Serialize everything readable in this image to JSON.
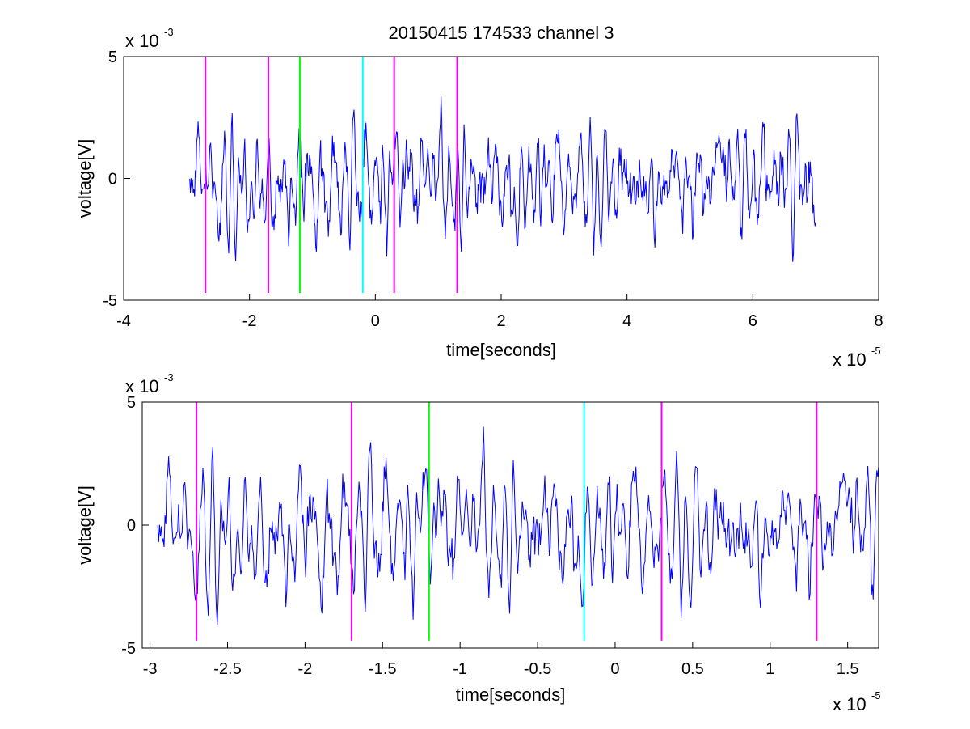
{
  "chart_data": [
    {
      "type": "line",
      "title": "20150415 174533 channel 3",
      "xlabel": "time[seconds]",
      "ylabel": "voltage[V]",
      "x_exponent_label": "x 10",
      "x_exponent_power": "-5",
      "y_exponent_label": "x 10",
      "y_exponent_power": "-3",
      "xlim": [
        -4,
        8
      ],
      "ylim": [
        -5,
        5
      ],
      "xticks": [
        -4,
        -2,
        0,
        2,
        4,
        6,
        8
      ],
      "xtick_labels": [
        "-4",
        "-2",
        "0",
        "2",
        "4",
        "6",
        "8"
      ],
      "yticks": [
        -5,
        0,
        5
      ],
      "ytick_labels": [
        "-5",
        "0",
        "5"
      ],
      "grid": false,
      "signal": {
        "color": "#0000ff",
        "x_start": -2.95,
        "x_end": 7.0,
        "samples": 900,
        "seed": 41,
        "envelope_peak": 3.6,
        "mean": -0.25
      },
      "markers": [
        {
          "x": -2.7,
          "color": "#ff00ff",
          "y_range": [
            -4.7,
            5
          ]
        },
        {
          "x": -1.7,
          "color": "#ff00ff",
          "y_range": [
            -4.7,
            5
          ]
        },
        {
          "x": -1.2,
          "color": "#00ff00",
          "y_range": [
            -4.7,
            5
          ]
        },
        {
          "x": -0.2,
          "color": "#00ffff",
          "y_range": [
            -4.7,
            5
          ]
        },
        {
          "x": 0.3,
          "color": "#ff00ff",
          "y_range": [
            -4.7,
            5
          ]
        },
        {
          "x": 1.3,
          "color": "#ff00ff",
          "y_range": [
            -4.7,
            5
          ]
        }
      ]
    },
    {
      "type": "line",
      "title": "",
      "xlabel": "time[seconds]",
      "ylabel": "voltage[V]",
      "x_exponent_label": "x 10",
      "x_exponent_power": "-5",
      "y_exponent_label": "x 10",
      "y_exponent_power": "-3",
      "xlim": [
        -3.05,
        1.7
      ],
      "ylim": [
        -5,
        5
      ],
      "xticks": [
        -3,
        -2.5,
        -2,
        -1.5,
        -1,
        -0.5,
        0,
        0.5,
        1,
        1.5
      ],
      "xtick_labels": [
        "-3",
        "-2.5",
        "-2",
        "-1.5",
        "-1",
        "-0.5",
        "0",
        "0.5",
        "1",
        "1.5"
      ],
      "yticks": [
        -5,
        0,
        5
      ],
      "ytick_labels": [
        "-5",
        "0",
        "5"
      ],
      "grid": false,
      "signal": {
        "color": "#0000ff",
        "x_start": -2.95,
        "x_end": 1.7,
        "samples": 800,
        "seed": 41,
        "envelope_peak": 4.3,
        "mean": -0.3
      },
      "markers": [
        {
          "x": -2.7,
          "color": "#ff00ff",
          "y_range": [
            -4.7,
            5
          ]
        },
        {
          "x": -1.7,
          "color": "#ff00ff",
          "y_range": [
            -4.7,
            5
          ]
        },
        {
          "x": -1.2,
          "color": "#00ff00",
          "y_range": [
            -4.7,
            5
          ]
        },
        {
          "x": -0.2,
          "color": "#00ffff",
          "y_range": [
            -4.7,
            5
          ]
        },
        {
          "x": 0.3,
          "color": "#ff00ff",
          "y_range": [
            -4.7,
            5
          ]
        },
        {
          "x": 1.3,
          "color": "#ff00ff",
          "y_range": [
            -4.7,
            5
          ]
        }
      ]
    }
  ]
}
